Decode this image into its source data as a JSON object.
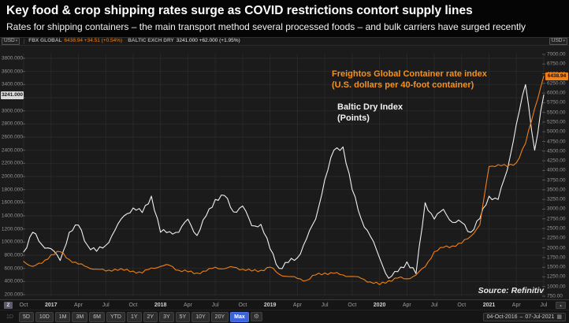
{
  "header": {
    "title": "Key food & crop shipping rates surge as COVID restrictions contort supply lines",
    "subtitle": "Rates for shipping containers – the main transport method several processed foods – and bulk carriers have surged recently"
  },
  "quote_bar": {
    "currency": "USD",
    "currency_right": "USD",
    "chevron": "▾",
    "fbx_name": "FBX GLOBAL",
    "fbx_value_change": "6438.94  +34.51 (+0.54%)",
    "baltic_name": "BALTIC EXCH DRY",
    "baltic_value_change": "3241.000  +62.000 (+1.95%)"
  },
  "chart": {
    "legend_fbx_line1": "Freightos Global Container rate index",
    "legend_fbx_line2": "(U.S. dollars per 40-foot container)",
    "legend_bdi_line1": "Baltic Dry Index",
    "legend_bdi_line2": "(Points)",
    "source": "Source: Refinitiv",
    "left_badge": "3241.000",
    "right_badge": "6438.94",
    "colors": {
      "orange": "#f08018",
      "white": "#f0f0f0",
      "background": "#1b1b1b",
      "grid": "#282828",
      "tick": "#555555",
      "active_blue": "#3c64d8"
    }
  },
  "chart_data": {
    "type": "line",
    "title": "Key food & crop shipping rates surge as COVID restrictions contort supply lines",
    "x": [
      "Oct-2016",
      "Nov-2016",
      "Dec-2016",
      "Jan-2017",
      "Feb-2017",
      "Mar-2017",
      "Apr-2017",
      "May-2017",
      "Jun-2017",
      "Jul-2017",
      "Aug-2017",
      "Sep-2017",
      "Oct-2017",
      "Nov-2017",
      "Dec-2017",
      "Jan-2018",
      "Feb-2018",
      "Mar-2018",
      "Apr-2018",
      "May-2018",
      "Jun-2018",
      "Jul-2018",
      "Aug-2018",
      "Sep-2018",
      "Oct-2018",
      "Nov-2018",
      "Dec-2018",
      "Jan-2019",
      "Feb-2019",
      "Mar-2019",
      "Apr-2019",
      "May-2019",
      "Jun-2019",
      "Jul-2019",
      "Aug-2019",
      "Sep-2019",
      "Oct-2019",
      "Nov-2019",
      "Dec-2019",
      "Jan-2020",
      "Feb-2020",
      "Mar-2020",
      "Apr-2020",
      "May-2020",
      "Jun-2020",
      "Jul-2020",
      "Aug-2020",
      "Sep-2020",
      "Oct-2020",
      "Nov-2020",
      "Dec-2020",
      "Jan-2021",
      "Feb-2021",
      "Mar-2021",
      "Apr-2021",
      "May-2021",
      "Jun-2021",
      "Jul-2021"
    ],
    "series": [
      {
        "name": "Baltic Dry Index (Points)",
        "axis": "left",
        "color": "#f0f0f0",
        "values": [
          850,
          1150,
          960,
          900,
          720,
          1150,
          1260,
          950,
          860,
          950,
          1180,
          1400,
          1520,
          1450,
          1700,
          1150,
          1160,
          1150,
          1350,
          1100,
          1400,
          1650,
          1710,
          1460,
          1550,
          1250,
          1270,
          900,
          600,
          690,
          760,
          1050,
          1350,
          1950,
          2400,
          2450,
          1800,
          1350,
          1090,
          760,
          450,
          550,
          700,
          520,
          1600,
          1350,
          1500,
          1300,
          1300,
          1150,
          1360,
          1700,
          1650,
          2100,
          2800,
          3400,
          2400,
          3241
        ]
      },
      {
        "name": "Freightos Global Container rate index (U.S. dollars per 40-foot container)",
        "axis": "right",
        "color": "#f08018",
        "values": [
          1650,
          1520,
          1600,
          1820,
          1900,
          1700,
          1580,
          1500,
          1450,
          1400,
          1450,
          1420,
          1400,
          1350,
          1480,
          1520,
          1550,
          1420,
          1380,
          1350,
          1400,
          1500,
          1460,
          1500,
          1450,
          1400,
          1420,
          1500,
          1320,
          1260,
          1210,
          1160,
          1300,
          1350,
          1340,
          1300,
          1260,
          1210,
          1120,
          1050,
          1150,
          1220,
          1200,
          1300,
          1510,
          1900,
          2010,
          2050,
          2120,
          2300,
          2600,
          4100,
          4150,
          4100,
          4200,
          4700,
          5600,
          6438.94
        ]
      }
    ],
    "left_axis": {
      "min": 200,
      "max": 3800,
      "tick_step": 200,
      "decimals": 3,
      "last_value": 3241.0
    },
    "right_axis": {
      "min": 750,
      "max": 7000,
      "tick_step": 250,
      "decimals": 2,
      "last_value": 6438.94
    },
    "grid": true,
    "legend_position": "inside-top-right"
  },
  "xaxis": {
    "zoom_button_label": "Z",
    "scroll_arrow": "▴",
    "labels": [
      {
        "label": "Oct",
        "index": 0,
        "year": false
      },
      {
        "label": "2017",
        "index": 3,
        "year": true
      },
      {
        "label": "Apr",
        "index": 6,
        "year": false
      },
      {
        "label": "Jul",
        "index": 9,
        "year": false
      },
      {
        "label": "Oct",
        "index": 12,
        "year": false
      },
      {
        "label": "2018",
        "index": 15,
        "year": true
      },
      {
        "label": "Apr",
        "index": 18,
        "year": false
      },
      {
        "label": "Jul",
        "index": 21,
        "year": false
      },
      {
        "label": "Oct",
        "index": 24,
        "year": false
      },
      {
        "label": "2019",
        "index": 27,
        "year": true
      },
      {
        "label": "Apr",
        "index": 30,
        "year": false
      },
      {
        "label": "Jul",
        "index": 33,
        "year": false
      },
      {
        "label": "Oct",
        "index": 36,
        "year": false
      },
      {
        "label": "2020",
        "index": 39,
        "year": true
      },
      {
        "label": "Apr",
        "index": 42,
        "year": false
      },
      {
        "label": "Jul",
        "index": 45,
        "year": false
      },
      {
        "label": "Oct",
        "index": 48,
        "year": false
      },
      {
        "label": "2021",
        "index": 51,
        "year": true
      },
      {
        "label": "Apr",
        "index": 54,
        "year": false
      },
      {
        "label": "Jul",
        "index": 57,
        "year": false
      }
    ]
  },
  "bottom_toolbar": {
    "ranges": [
      "1D",
      "5D",
      "10D",
      "1M",
      "3M",
      "6M",
      "YTD",
      "1Y",
      "2Y",
      "3Y",
      "5Y",
      "10Y",
      "20Y",
      "Max"
    ],
    "active": "Max",
    "disabled": "1D",
    "gear": "⚙",
    "date_from": "04-Oct-2016",
    "date_separator": "–",
    "date_to": "07-Jul-2021",
    "calendar_icon": "▦"
  }
}
